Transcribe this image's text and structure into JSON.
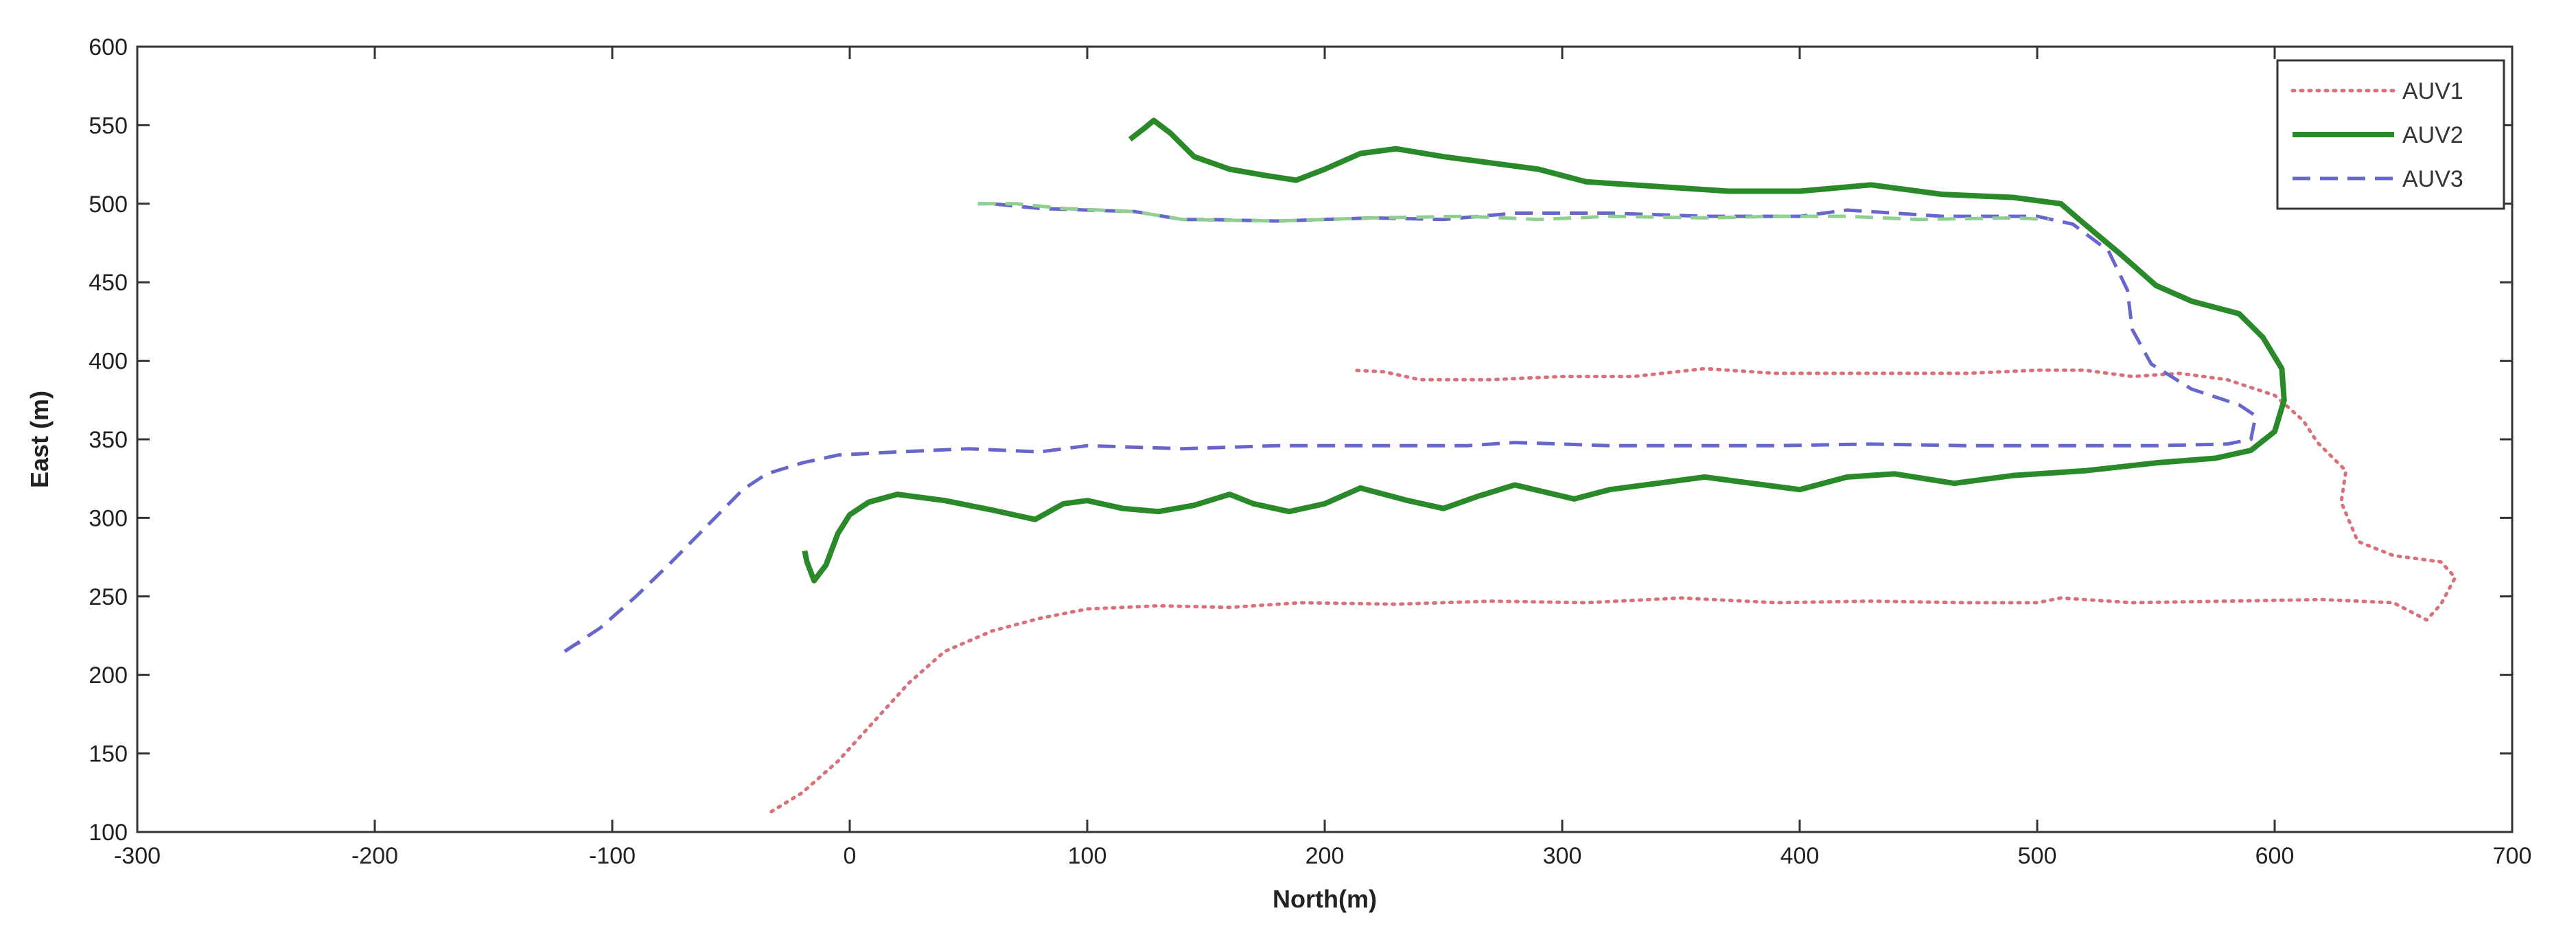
{
  "chart_data": {
    "type": "line",
    "xlabel": "North(m)",
    "ylabel": "East (m)",
    "xlim": [
      -300,
      700
    ],
    "ylim": [
      100,
      600
    ],
    "xticks": [
      -300,
      -200,
      -100,
      0,
      100,
      200,
      300,
      400,
      500,
      600,
      700
    ],
    "yticks": [
      100,
      150,
      200,
      250,
      300,
      350,
      400,
      450,
      500,
      550,
      600
    ],
    "xtick_labels": [
      "-300",
      "-200",
      "-100",
      "0",
      "100",
      "200",
      "300",
      "400",
      "500",
      "600",
      "700"
    ],
    "ytick_labels": [
      "100",
      "150",
      "200",
      "250",
      "300",
      "350",
      "400",
      "450",
      "500",
      "550",
      "600"
    ],
    "grid": false,
    "legend_position": "top-right",
    "series": [
      {
        "name": "AUV1",
        "color": "#d9707a",
        "style": "dotted",
        "segments": [
          [
            [
              -33,
              113
            ],
            [
              -20,
              125
            ],
            [
              -5,
              145
            ],
            [
              10,
              170
            ],
            [
              25,
              195
            ],
            [
              40,
              215
            ],
            [
              60,
              228
            ],
            [
              80,
              236
            ],
            [
              100,
              242
            ],
            [
              130,
              244
            ],
            [
              160,
              243
            ],
            [
              190,
              246
            ],
            [
              230,
              245
            ],
            [
              270,
              247
            ],
            [
              310,
              246
            ],
            [
              350,
              249
            ],
            [
              390,
              246
            ],
            [
              430,
              247
            ],
            [
              470,
              246
            ],
            [
              500,
              246
            ],
            [
              510,
              249
            ],
            [
              540,
              246
            ],
            [
              580,
              247
            ],
            [
              620,
              248
            ],
            [
              650,
              246
            ],
            [
              664,
              235
            ],
            [
              670,
              245
            ],
            [
              676,
              262
            ],
            [
              670,
              272
            ],
            [
              650,
              276
            ],
            [
              635,
              285
            ],
            [
              628,
              310
            ],
            [
              630,
              330
            ],
            [
              618,
              348
            ],
            [
              612,
              362
            ],
            [
              600,
              378
            ],
            [
              580,
              388
            ],
            [
              560,
              392
            ],
            [
              540,
              390
            ],
            [
              520,
              394
            ],
            [
              500,
              394
            ],
            [
              470,
              392
            ],
            [
              430,
              392
            ],
            [
              390,
              392
            ],
            [
              360,
              395
            ],
            [
              330,
              390
            ],
            [
              300,
              390
            ],
            [
              270,
              388
            ],
            [
              240,
              388
            ],
            [
              225,
              393
            ],
            [
              212,
              394
            ]
          ]
        ]
      },
      {
        "name": "AUV2",
        "color": "#2a8a2a",
        "style": "solid",
        "segments": [
          [
            [
              118,
              541
            ],
            [
              124,
              548
            ],
            [
              128,
              553
            ],
            [
              135,
              545
            ],
            [
              145,
              530
            ],
            [
              160,
              522
            ],
            [
              175,
              518
            ],
            [
              188,
              515
            ],
            [
              200,
              522
            ],
            [
              215,
              532
            ],
            [
              230,
              535
            ],
            [
              250,
              530
            ],
            [
              270,
              526
            ],
            [
              290,
              522
            ],
            [
              310,
              514
            ],
            [
              340,
              511
            ],
            [
              370,
              508
            ],
            [
              400,
              508
            ],
            [
              430,
              512
            ],
            [
              460,
              506
            ],
            [
              490,
              504
            ],
            [
              510,
              500
            ],
            [
              520,
              487
            ],
            [
              535,
              468
            ],
            [
              550,
              448
            ],
            [
              565,
              438
            ],
            [
              585,
              430
            ],
            [
              595,
              415
            ],
            [
              603,
              395
            ],
            [
              604,
              375
            ],
            [
              600,
              355
            ],
            [
              590,
              343
            ],
            [
              575,
              338
            ],
            [
              550,
              335
            ],
            [
              520,
              330
            ],
            [
              490,
              327
            ],
            [
              465,
              322
            ],
            [
              440,
              328
            ],
            [
              420,
              326
            ],
            [
              400,
              318
            ],
            [
              380,
              322
            ],
            [
              360,
              326
            ],
            [
              340,
              322
            ],
            [
              320,
              318
            ],
            [
              305,
              312
            ],
            [
              280,
              321
            ],
            [
              265,
              314
            ],
            [
              250,
              306
            ],
            [
              235,
              311
            ],
            [
              215,
              319
            ],
            [
              200,
              309
            ],
            [
              185,
              304
            ],
            [
              170,
              309
            ],
            [
              160,
              315
            ],
            [
              145,
              308
            ],
            [
              130,
              304
            ],
            [
              115,
              306
            ],
            [
              100,
              311
            ],
            [
              90,
              309
            ],
            [
              78,
              299
            ],
            [
              60,
              305
            ],
            [
              40,
              311
            ],
            [
              20,
              315
            ],
            [
              8,
              310
            ],
            [
              0,
              302
            ],
            [
              -5,
              290
            ],
            [
              -10,
              270
            ],
            [
              -15,
              260
            ],
            [
              -18,
              272
            ],
            [
              -19,
              279
            ]
          ]
        ]
      },
      {
        "name": "AUV3",
        "color": "#6666cc",
        "style": "dashed",
        "segments": [
          [
            [
              -120,
              215
            ],
            [
              -105,
              230
            ],
            [
              -90,
              250
            ],
            [
              -75,
              272
            ],
            [
              -60,
              295
            ],
            [
              -45,
              318
            ],
            [
              -35,
              328
            ],
            [
              -20,
              335
            ],
            [
              -5,
              340
            ],
            [
              20,
              342
            ],
            [
              50,
              344
            ],
            [
              80,
              342
            ],
            [
              100,
              346
            ],
            [
              140,
              344
            ],
            [
              180,
              346
            ],
            [
              220,
              346
            ],
            [
              260,
              346
            ],
            [
              280,
              348
            ],
            [
              320,
              346
            ],
            [
              350,
              346
            ],
            [
              390,
              346
            ],
            [
              430,
              347
            ],
            [
              470,
              346
            ],
            [
              510,
              346
            ],
            [
              550,
              346
            ],
            [
              580,
              347
            ],
            [
              590,
              350
            ],
            [
              592,
              365
            ],
            [
              585,
              372
            ],
            [
              565,
              382
            ],
            [
              548,
              398
            ],
            [
              540,
              420
            ],
            [
              538,
              445
            ],
            [
              530,
              470
            ],
            [
              515,
              487
            ],
            [
              500,
              492
            ],
            [
              460,
              492
            ],
            [
              420,
              496
            ],
            [
              400,
              492
            ],
            [
              360,
              492
            ],
            [
              320,
              494
            ],
            [
              280,
              494
            ],
            [
              250,
              490
            ],
            [
              220,
              491
            ],
            [
              180,
              489
            ],
            [
              150,
              490
            ],
            [
              140,
              490
            ],
            [
              120,
              495
            ],
            [
              100,
              496
            ],
            [
              80,
              497
            ],
            [
              60,
              500
            ],
            [
              54,
              500
            ]
          ],
          [
            [
              -120,
              215
            ],
            [
              -118,
              217
            ],
            [
              -116,
              219
            ],
            [
              -112,
              222
            ]
          ]
        ]
      },
      {
        "name": "",
        "color": "#8fcf8f",
        "style": "dashed",
        "legend": false,
        "segments": [
          [
            [
              54,
              500
            ],
            [
              70,
              500
            ],
            [
              90,
              497
            ],
            [
              120,
              495
            ],
            [
              140,
              490
            ],
            [
              180,
              489
            ],
            [
              220,
              491
            ],
            [
              260,
              492
            ],
            [
              290,
              490
            ],
            [
              320,
              492
            ],
            [
              360,
              491
            ],
            [
              390,
              492
            ],
            [
              420,
              492
            ],
            [
              450,
              490
            ],
            [
              490,
              491
            ],
            [
              505,
              490
            ]
          ]
        ]
      }
    ],
    "legend": [
      {
        "label": "AUV1",
        "series_index": 0
      },
      {
        "label": "AUV2",
        "series_index": 1
      },
      {
        "label": "AUV3",
        "series_index": 2
      }
    ]
  }
}
